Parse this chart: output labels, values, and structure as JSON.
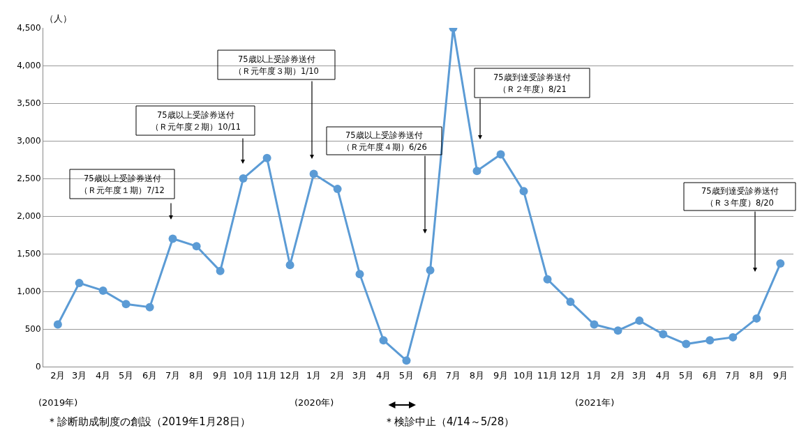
{
  "chart_data": {
    "type": "line",
    "ylabel": "（人）",
    "x": [
      "2019-02",
      "2019-03",
      "2019-04",
      "2019-05",
      "2019-06",
      "2019-07",
      "2019-08",
      "2019-09",
      "2019-10",
      "2019-11",
      "2019-12",
      "2020-01",
      "2020-02",
      "2020-03",
      "2020-04",
      "2020-05",
      "2020-06",
      "2020-07",
      "2020-08",
      "2020-09",
      "2020-10",
      "2020-11",
      "2020-12",
      "2021-01",
      "2021-02",
      "2021-03",
      "2021-04",
      "2021-05",
      "2021-06",
      "2021-07",
      "2021-08",
      "2021-09"
    ],
    "series": [
      {
        "color": "#5b9bd5",
        "values": [
          560,
          1110,
          1010,
          830,
          790,
          1700,
          1600,
          1270,
          2500,
          2770,
          1350,
          2560,
          2360,
          1230,
          350,
          80,
          1280,
          4500,
          2600,
          2820,
          2330,
          1160,
          860,
          560,
          480,
          610,
          430,
          300,
          350,
          390,
          640,
          1370
        ]
      }
    ],
    "xlim": [
      "2019-01-13",
      "2021-09-18"
    ],
    "xticks": [
      {
        "value": "2019-02",
        "label": "2月"
      },
      {
        "value": "2019-03",
        "label": "3月"
      },
      {
        "value": "2019-04",
        "label": "4月"
      },
      {
        "value": "2019-05",
        "label": "5月"
      },
      {
        "value": "2019-06",
        "label": "6月"
      },
      {
        "value": "2019-07",
        "label": "7月"
      },
      {
        "value": "2019-08",
        "label": "8月"
      },
      {
        "value": "2019-09",
        "label": "9月"
      },
      {
        "value": "2019-10",
        "label": "10月"
      },
      {
        "value": "2019-11",
        "label": "11月"
      },
      {
        "value": "2019-12",
        "label": "12月"
      },
      {
        "value": "2020-01",
        "label": "1月"
      },
      {
        "value": "2020-02",
        "label": "2月"
      },
      {
        "value": "2020-03",
        "label": "3月"
      },
      {
        "value": "2020-04",
        "label": "4月"
      },
      {
        "value": "2020-05",
        "label": "5月"
      },
      {
        "value": "2020-06",
        "label": "6月"
      },
      {
        "value": "2020-07",
        "label": "7月"
      },
      {
        "value": "2020-08",
        "label": "8月"
      },
      {
        "value": "2020-09",
        "label": "9月"
      },
      {
        "value": "2020-10",
        "label": "10月"
      },
      {
        "value": "2020-11",
        "label": "11月"
      },
      {
        "value": "2020-12",
        "label": "12月"
      },
      {
        "value": "2021-01",
        "label": "1月"
      },
      {
        "value": "2021-02",
        "label": "2月"
      },
      {
        "value": "2021-03",
        "label": "3月"
      },
      {
        "value": "2021-04",
        "label": "4月"
      },
      {
        "value": "2021-05",
        "label": "5月"
      },
      {
        "value": "2021-06",
        "label": "6月"
      },
      {
        "value": "2021-07",
        "label": "7月"
      },
      {
        "value": "2021-08",
        "label": "8月"
      },
      {
        "value": "2021-09",
        "label": "9月"
      }
    ],
    "ylim": [
      0,
      4500
    ],
    "yticks": [
      0,
      500,
      {
        "value": 1000,
        "label": "1,000"
      },
      {
        "value": 1500,
        "label": "1,500"
      },
      {
        "value": 2000,
        "label": "2,000"
      },
      {
        "value": 2500,
        "label": "2,500"
      },
      {
        "value": 3000,
        "label": "3,000"
      },
      {
        "value": 3500,
        "label": "3,500"
      },
      {
        "value": 4000,
        "label": "4,000"
      },
      {
        "value": 4500,
        "label": "4,500"
      }
    ],
    "grid": "y",
    "marker": "circle",
    "line_style": "solid",
    "annotations": [
      "75歳以上受診券送付",
      "（Ｒ元年度１期）7/12",
      "75歳以上受診券送付",
      "（Ｒ元年度２期）10/11",
      "75歳以上受診券送付",
      "（Ｒ元年度３期）1/10",
      "75歳以上受診券送付",
      "（Ｒ元年度４期）6/26",
      "75歳到達受診券送付",
      "（Ｒ２年度）8/21",
      "75歳到達受診券送付",
      "（Ｒ３年度）8/20",
      "(2019年)",
      "(2020年)",
      "(2021年)",
      "＊診断助成制度の創設（2019年1月28日）",
      "＊検診中止（4/14～5/28）"
    ]
  }
}
